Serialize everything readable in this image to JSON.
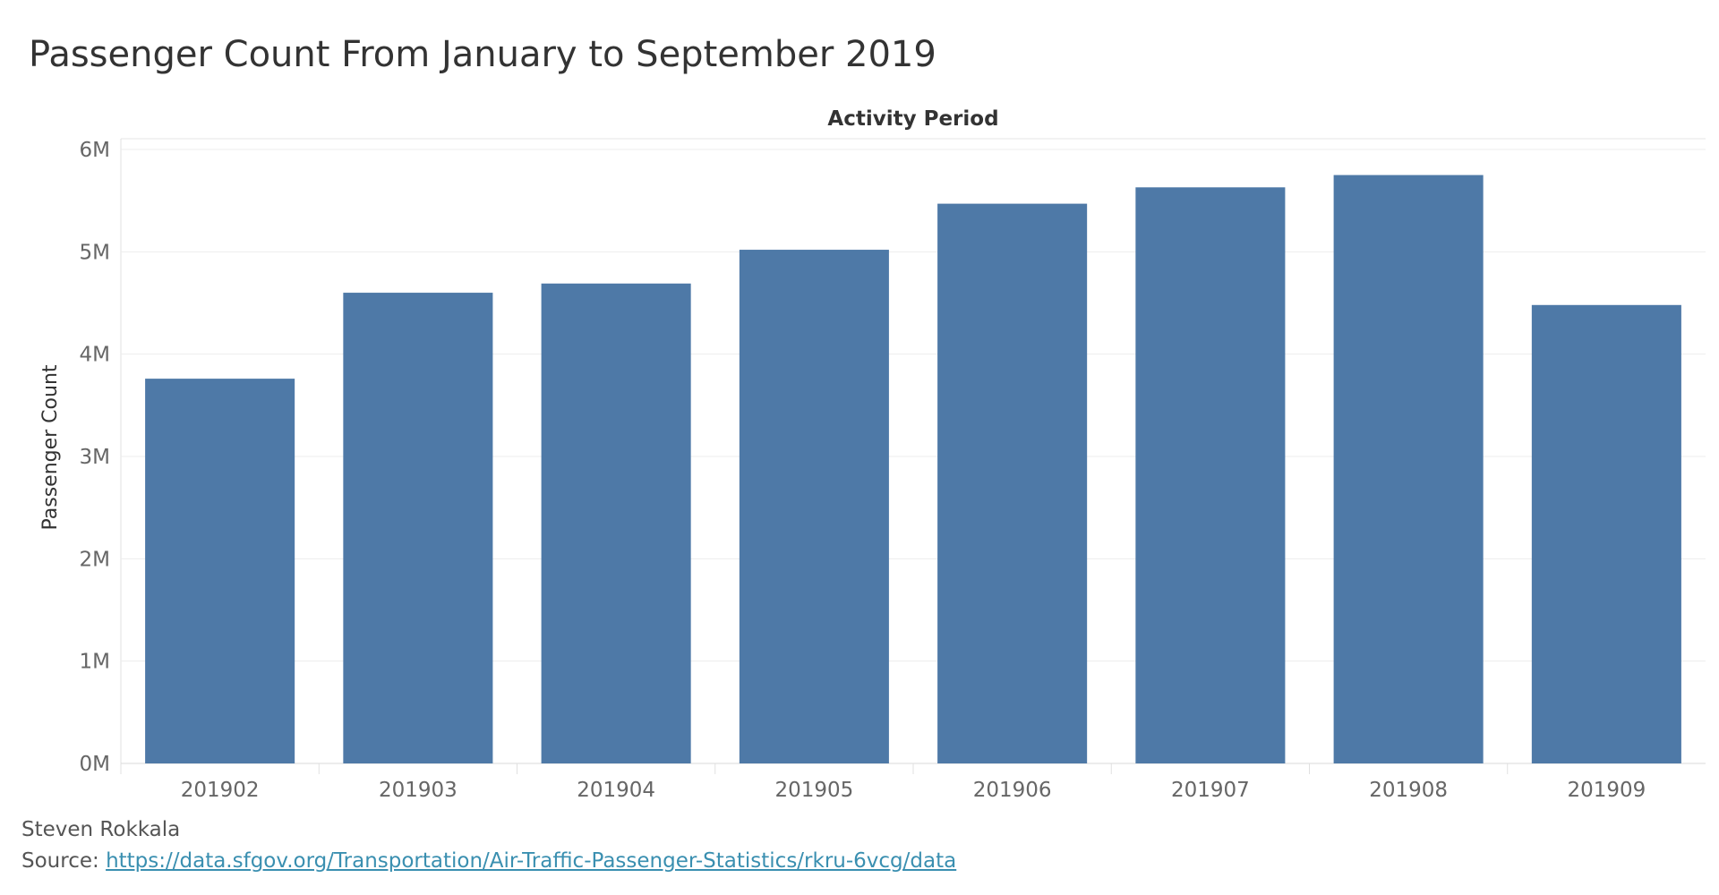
{
  "title": "Passenger Count From January to September 2019",
  "chart_data": {
    "type": "bar",
    "x_title": "Activity Period",
    "ylabel": "Passenger Count",
    "categories": [
      "201902",
      "201903",
      "201904",
      "201905",
      "201906",
      "201907",
      "201908",
      "201909"
    ],
    "values": [
      3760000,
      4600000,
      4690000,
      5020000,
      5470000,
      5630000,
      5750000,
      4480000
    ],
    "ylim": [
      0,
      6000000
    ],
    "y_ticks": [
      0,
      1000000,
      2000000,
      3000000,
      4000000,
      5000000,
      6000000
    ],
    "y_tick_labels": [
      "0M",
      "1M",
      "2M",
      "3M",
      "4M",
      "5M",
      "6M"
    ],
    "grid": true,
    "bar_color": "#4e79a7"
  },
  "footer": {
    "author": "Steven Rokkala",
    "source_prefix": "Source: ",
    "source_url": "https://data.sfgov.org/Transportation/Air-Traffic-Passenger-Statistics/rkru-6vcg/data"
  }
}
